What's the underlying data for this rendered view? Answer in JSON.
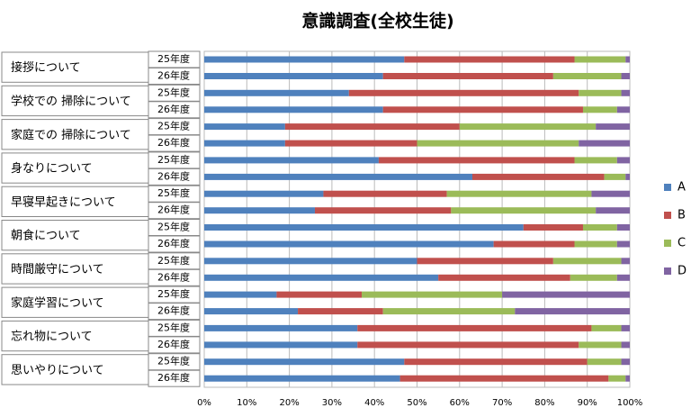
{
  "chart_data": {
    "type": "stacked_barh",
    "title": "意識調査(全校生徒)",
    "groups": [
      "接拶について",
      "学校での 掃除について",
      "家庭での 掃除について",
      "身なりについて",
      "早寝早起きについて",
      "朝食について",
      "時間厳守について",
      "家庭学習について",
      "忘れ物について",
      "思いやりについて"
    ],
    "categories": [
      "25年度",
      "26年度",
      "25年度",
      "26年度",
      "25年度",
      "26年度",
      "25年度",
      "26年度",
      "25年度",
      "26年度",
      "25年度",
      "26年度",
      "25年度",
      "26年度",
      "25年度",
      "26年度",
      "25年度",
      "26年度",
      "25年度",
      "26年度"
    ],
    "series": [
      {
        "name": "A",
        "color": "#4f81bd",
        "values": [
          47,
          42,
          34,
          42,
          19,
          19,
          41,
          63,
          28,
          26,
          75,
          68,
          50,
          55,
          17,
          22,
          36,
          36,
          47,
          46
        ]
      },
      {
        "name": "B",
        "color": "#c0504d",
        "values": [
          40,
          40,
          54,
          47,
          41,
          31,
          46,
          31,
          29,
          32,
          14,
          19,
          32,
          31,
          20,
          20,
          55,
          52,
          43,
          49
        ]
      },
      {
        "name": "C",
        "color": "#9bbb59",
        "values": [
          12,
          16,
          10,
          8,
          32,
          38,
          10,
          5,
          34,
          34,
          8,
          10,
          16,
          11,
          33,
          31,
          7,
          10,
          8,
          4
        ]
      },
      {
        "name": "D",
        "color": "#8064a2",
        "values": [
          1,
          2,
          2,
          3,
          8,
          12,
          3,
          1,
          9,
          8,
          3,
          3,
          2,
          3,
          30,
          27,
          2,
          2,
          2,
          1
        ]
      }
    ],
    "xlim": [
      0,
      100
    ],
    "xticks": [
      {
        "value": 0,
        "label": "0%"
      },
      {
        "value": 10,
        "label": "10%"
      },
      {
        "value": 20,
        "label": "20%"
      },
      {
        "value": 30,
        "label": "30%"
      },
      {
        "value": 40,
        "label": "40%"
      },
      {
        "value": 50,
        "label": "50%"
      },
      {
        "value": 60,
        "label": "60%"
      },
      {
        "value": 70,
        "label": "70%"
      },
      {
        "value": 80,
        "label": "80%"
      },
      {
        "value": 90,
        "label": "90%"
      },
      {
        "value": 100,
        "label": "100%"
      }
    ],
    "grid": true,
    "legend": "right"
  }
}
